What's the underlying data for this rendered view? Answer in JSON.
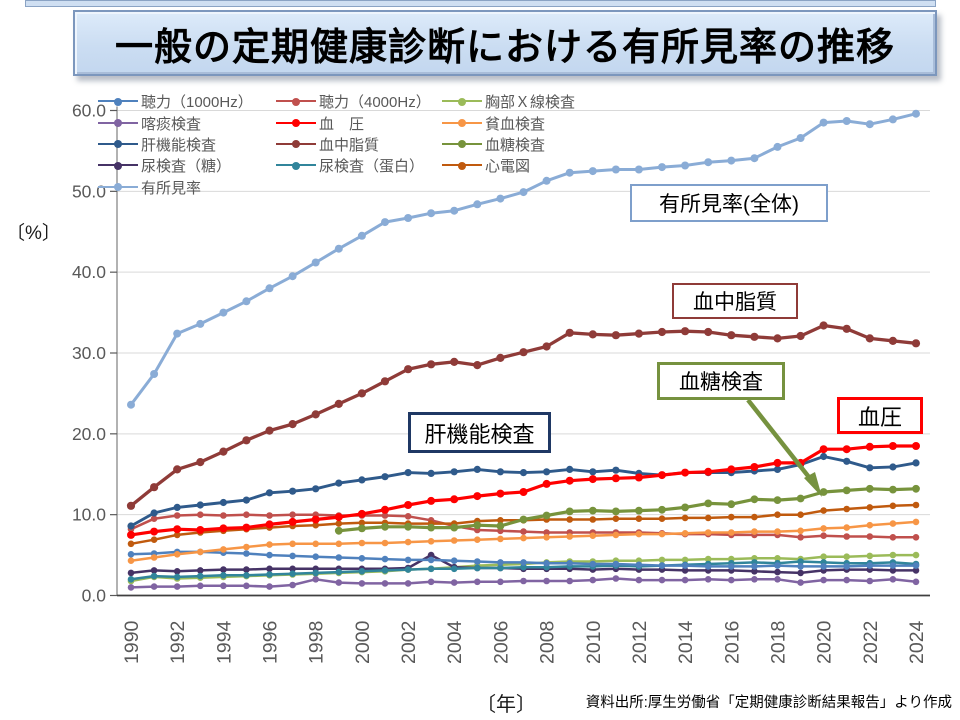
{
  "title": "一般の定期健康診断における有所見率の推移",
  "y_axis": {
    "unit_label": "〔%〕",
    "ticks": [
      "0.0",
      "10.0",
      "20.0",
      "30.0",
      "40.0",
      "50.0",
      "60.0"
    ]
  },
  "x_axis": {
    "unit_label": "〔年〕",
    "tick_years": [
      1990,
      1992,
      1994,
      1996,
      1998,
      2000,
      2002,
      2004,
      2006,
      2008,
      2010,
      2012,
      2014,
      2016,
      2018,
      2020,
      2022,
      2024
    ]
  },
  "source": "資料出所:厚生労働省「定期健康診断結果報告」より作成",
  "annotations": [
    {
      "label": "有所見率(全体)"
    },
    {
      "label": "血中脂質"
    },
    {
      "label": "血糖検査"
    },
    {
      "label": "血圧"
    },
    {
      "label": "肝機能検査"
    }
  ],
  "chart_data": {
    "type": "line",
    "x": [
      1990,
      1991,
      1992,
      1993,
      1994,
      1995,
      1996,
      1997,
      1998,
      1999,
      2000,
      2001,
      2002,
      2003,
      2004,
      2005,
      2006,
      2007,
      2008,
      2009,
      2010,
      2011,
      2012,
      2013,
      2014,
      2015,
      2016,
      2017,
      2018,
      2019,
      2020,
      2021,
      2022,
      2023,
      2024
    ],
    "xlabel": "〔年〕",
    "ylabel": "〔%〕",
    "ylim": [
      0,
      60
    ],
    "grid": true,
    "legend_position": "top-left",
    "series": [
      {
        "name": "聴力（1000Hz）",
        "color": "#4F81BD",
        "values": [
          5.1,
          5.2,
          5.4,
          5.4,
          5.3,
          5.2,
          5.0,
          4.9,
          4.8,
          4.7,
          4.6,
          4.5,
          4.4,
          4.4,
          4.3,
          4.2,
          4.1,
          4.1,
          4.0,
          4.0,
          3.9,
          3.9,
          3.8,
          3.7,
          3.7,
          3.6,
          3.6,
          3.6,
          3.7,
          3.6,
          3.6,
          3.6,
          3.7,
          3.7,
          3.7
        ]
      },
      {
        "name": "聴力（4000Hz）",
        "color": "#C0504D",
        "values": [
          8.2,
          9.5,
          9.9,
          10.0,
          9.9,
          10.0,
          9.9,
          10.0,
          10.0,
          9.9,
          9.9,
          9.9,
          9.8,
          9.3,
          8.6,
          8.1,
          8.0,
          7.9,
          7.8,
          7.8,
          7.8,
          7.8,
          7.8,
          7.7,
          7.6,
          7.6,
          7.5,
          7.5,
          7.5,
          7.2,
          7.4,
          7.3,
          7.3,
          7.2,
          7.2
        ]
      },
      {
        "name": "胸部Ｘ線検査",
        "color": "#9BBB59",
        "values": [
          1.8,
          2.3,
          2.1,
          2.2,
          2.3,
          2.4,
          2.5,
          2.6,
          2.7,
          2.8,
          2.9,
          3.0,
          3.2,
          3.3,
          3.5,
          3.7,
          3.8,
          3.9,
          4.1,
          4.2,
          4.2,
          4.3,
          4.3,
          4.4,
          4.4,
          4.5,
          4.5,
          4.6,
          4.6,
          4.5,
          4.8,
          4.8,
          4.9,
          5.0,
          5.0
        ]
      },
      {
        "name": "喀痰検査",
        "color": "#8064A2",
        "values": [
          1.0,
          1.1,
          1.1,
          1.2,
          1.2,
          1.2,
          1.1,
          1.3,
          2.0,
          1.6,
          1.5,
          1.5,
          1.5,
          1.7,
          1.6,
          1.7,
          1.7,
          1.8,
          1.8,
          1.8,
          1.9,
          2.1,
          1.9,
          1.9,
          1.9,
          2.0,
          1.9,
          2.0,
          2.0,
          1.6,
          1.9,
          1.9,
          1.8,
          2.0,
          1.7
        ]
      },
      {
        "name": "血　圧",
        "color": "#FF0000",
        "values": [
          7.5,
          7.9,
          8.2,
          8.1,
          8.3,
          8.4,
          8.8,
          9.1,
          9.4,
          9.7,
          10.1,
          10.6,
          11.2,
          11.7,
          11.9,
          12.3,
          12.6,
          12.8,
          13.8,
          14.2,
          14.4,
          14.5,
          14.6,
          14.9,
          15.2,
          15.3,
          15.6,
          15.9,
          16.4,
          16.4,
          18.1,
          18.1,
          18.4,
          18.5,
          18.5
        ]
      },
      {
        "name": "貧血検査",
        "color": "#F79646",
        "values": [
          4.3,
          4.7,
          5.1,
          5.4,
          5.7,
          6.0,
          6.3,
          6.4,
          6.4,
          6.4,
          6.5,
          6.5,
          6.6,
          6.7,
          6.8,
          6.9,
          7.0,
          7.1,
          7.2,
          7.3,
          7.4,
          7.5,
          7.6,
          7.6,
          7.7,
          7.8,
          7.8,
          7.9,
          7.9,
          8.0,
          8.3,
          8.4,
          8.7,
          8.9,
          9.1
        ]
      },
      {
        "name": "肝機能検査",
        "color": "#2F5A8B",
        "values": [
          8.6,
          10.2,
          10.9,
          11.2,
          11.5,
          11.8,
          12.7,
          12.9,
          13.2,
          13.9,
          14.3,
          14.7,
          15.2,
          15.1,
          15.3,
          15.6,
          15.3,
          15.2,
          15.3,
          15.6,
          15.3,
          15.5,
          15.1,
          14.9,
          15.2,
          15.2,
          15.2,
          15.4,
          15.6,
          16.2,
          17.2,
          16.6,
          15.8,
          15.9,
          16.4
        ]
      },
      {
        "name": "血中脂質",
        "color": "#8F3B38",
        "values": [
          11.1,
          13.4,
          15.6,
          16.5,
          17.8,
          19.2,
          20.4,
          21.2,
          22.4,
          23.7,
          25.0,
          26.5,
          28.0,
          28.6,
          28.9,
          28.5,
          29.4,
          30.1,
          30.8,
          32.5,
          32.3,
          32.2,
          32.4,
          32.6,
          32.7,
          32.6,
          32.2,
          32.0,
          31.8,
          32.1,
          33.4,
          33.0,
          31.8,
          31.5,
          31.2
        ]
      },
      {
        "name": "血糖検査",
        "color": "#77933C",
        "values": [
          null,
          null,
          null,
          null,
          null,
          null,
          null,
          null,
          null,
          8.0,
          8.3,
          8.5,
          8.5,
          8.4,
          8.4,
          8.7,
          8.6,
          9.4,
          9.9,
          10.4,
          10.5,
          10.4,
          10.5,
          10.6,
          10.9,
          11.4,
          11.3,
          11.9,
          11.8,
          12.0,
          12.8,
          13.0,
          13.2,
          13.1,
          13.2
        ]
      },
      {
        "name": "尿検査（糖）",
        "color": "#463366",
        "values": [
          2.8,
          3.1,
          3.0,
          3.1,
          3.2,
          3.2,
          3.3,
          3.3,
          3.3,
          3.3,
          3.3,
          3.3,
          3.4,
          5.0,
          3.5,
          3.4,
          3.4,
          3.3,
          3.3,
          3.3,
          3.2,
          3.3,
          3.2,
          3.2,
          3.1,
          3.1,
          3.1,
          3.0,
          2.9,
          2.8,
          3.1,
          3.2,
          3.2,
          3.1,
          3.1
        ]
      },
      {
        "name": "尿検査（蛋白）",
        "color": "#31859B",
        "values": [
          2.0,
          2.4,
          2.3,
          2.4,
          2.5,
          2.5,
          2.6,
          2.7,
          2.8,
          2.9,
          3.0,
          3.1,
          3.2,
          3.3,
          3.3,
          3.4,
          3.4,
          3.5,
          3.5,
          3.6,
          3.6,
          3.7,
          3.6,
          3.7,
          3.8,
          3.9,
          4.0,
          4.1,
          4.0,
          4.2,
          4.1,
          4.0,
          4.0,
          4.1,
          3.9
        ]
      },
      {
        "name": "心電図",
        "color": "#C05A0E",
        "values": [
          6.4,
          6.9,
          7.5,
          7.8,
          8.0,
          8.2,
          8.4,
          8.6,
          8.7,
          8.9,
          9.0,
          9.0,
          8.9,
          8.9,
          8.9,
          9.2,
          9.3,
          9.3,
          9.4,
          9.4,
          9.4,
          9.5,
          9.5,
          9.5,
          9.6,
          9.6,
          9.7,
          9.7,
          10.0,
          10.0,
          10.5,
          10.7,
          10.9,
          11.1,
          11.2
        ]
      },
      {
        "name": "有所見率",
        "color": "#8AACD6",
        "values": [
          23.6,
          27.4,
          32.4,
          33.6,
          35.0,
          36.4,
          38.0,
          39.5,
          41.2,
          42.9,
          44.5,
          46.2,
          46.7,
          47.3,
          47.6,
          48.4,
          49.1,
          49.9,
          51.3,
          52.3,
          52.5,
          52.7,
          52.7,
          53.0,
          53.2,
          53.6,
          53.8,
          54.1,
          55.5,
          56.6,
          58.5,
          58.7,
          58.3,
          58.9,
          59.6
        ]
      }
    ]
  }
}
